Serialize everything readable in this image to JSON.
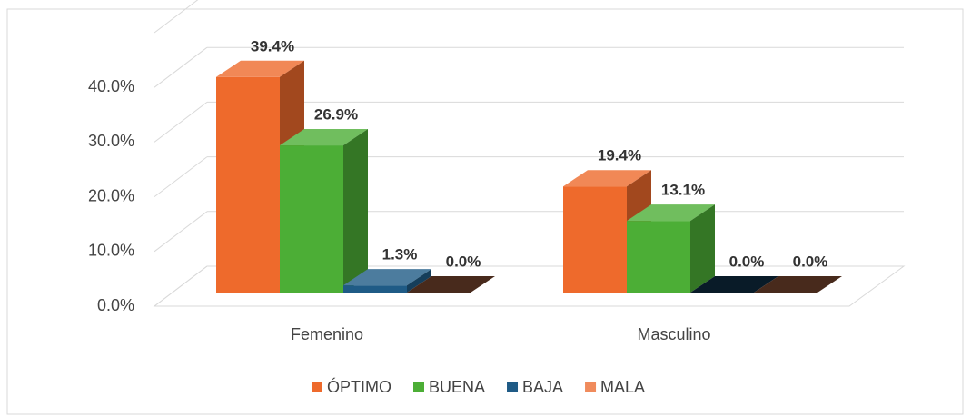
{
  "chart_data": {
    "type": "bar",
    "categories": [
      "Femenino",
      "Masculino"
    ],
    "series": [
      {
        "name": "ÓPTIMO",
        "color": "#ee6a2c",
        "values": [
          39.4,
          19.4
        ],
        "value_labels": [
          "39.4%",
          "19.4%"
        ]
      },
      {
        "name": "BUENA",
        "color": "#4cae36",
        "values": [
          26.9,
          13.1
        ],
        "value_labels": [
          "26.9%",
          "13.1%"
        ]
      },
      {
        "name": "BAJA",
        "color": "#1f5b86",
        "values": [
          1.3,
          0.0
        ],
        "value_labels": [
          "1.3%",
          "0.0%"
        ]
      },
      {
        "name": "MALA",
        "color": "#f08b5c",
        "values": [
          0.0,
          0.0
        ],
        "value_labels": [
          "0.0%",
          "0.0%"
        ]
      }
    ],
    "ylim": [
      0,
      50
    ],
    "yticks": [
      {
        "value": 0,
        "label": "0.0%"
      },
      {
        "value": 10,
        "label": "10.0%"
      },
      {
        "value": 20,
        "label": "20.0%"
      },
      {
        "value": 30,
        "label": "30.0%"
      },
      {
        "value": 40,
        "label": "40.0%"
      }
    ],
    "grid": true,
    "legend": "bottom"
  }
}
